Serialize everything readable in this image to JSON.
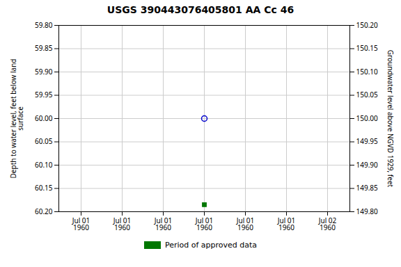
{
  "chart_data": {
    "type": "scatter",
    "title": "USGS 390443076405801 AA Cc  46",
    "ylabel": "Depth to water level, feet below land\nsurface",
    "y2label": "Groundwater level above NGVD 1929, feet",
    "categories": [
      "Jul 01\n1960",
      "Jul 01\n1960",
      "Jul 01\n1960",
      "Jul 01\n1960",
      "Jul 01\n1960",
      "Jul 01\n1960",
      "Jul 02\n1960"
    ],
    "series": [
      {
        "color": "#0000cc",
        "marker": "open_circle",
        "values": [
          null,
          null,
          null,
          60.0,
          null,
          null,
          null
        ]
      },
      {
        "name": "Period of approved data",
        "color": "#007700",
        "marker": "square",
        "values": [
          null,
          null,
          null,
          60.185,
          null,
          null,
          null
        ]
      }
    ],
    "ylim": [
      60.2,
      59.8
    ],
    "yticks": [
      {
        "value": 59.8,
        "label": "59.80"
      },
      {
        "value": 59.85,
        "label": "59.85"
      },
      {
        "value": 59.9,
        "label": "59.90"
      },
      {
        "value": 59.95,
        "label": "59.95"
      },
      {
        "value": 60.0,
        "label": "60.00"
      },
      {
        "value": 60.05,
        "label": "60.05"
      },
      {
        "value": 60.1,
        "label": "60.10"
      },
      {
        "value": 60.15,
        "label": "60.15"
      },
      {
        "value": 60.2,
        "label": "60.20"
      }
    ],
    "y2lim": [
      149.8,
      150.2
    ],
    "y2ticks": [
      {
        "value": 150.2,
        "label": "150.20"
      },
      {
        "value": 150.15,
        "label": "150.15"
      },
      {
        "value": 150.1,
        "label": "150.10"
      },
      {
        "value": 150.05,
        "label": "150.05"
      },
      {
        "value": 150.0,
        "label": "150.00"
      },
      {
        "value": 149.95,
        "label": "149.95"
      },
      {
        "value": 149.9,
        "label": "149.90"
      },
      {
        "value": 149.85,
        "label": "149.85"
      },
      {
        "value": 149.8,
        "label": "149.80"
      }
    ],
    "grid": true,
    "legend": "bottom"
  }
}
